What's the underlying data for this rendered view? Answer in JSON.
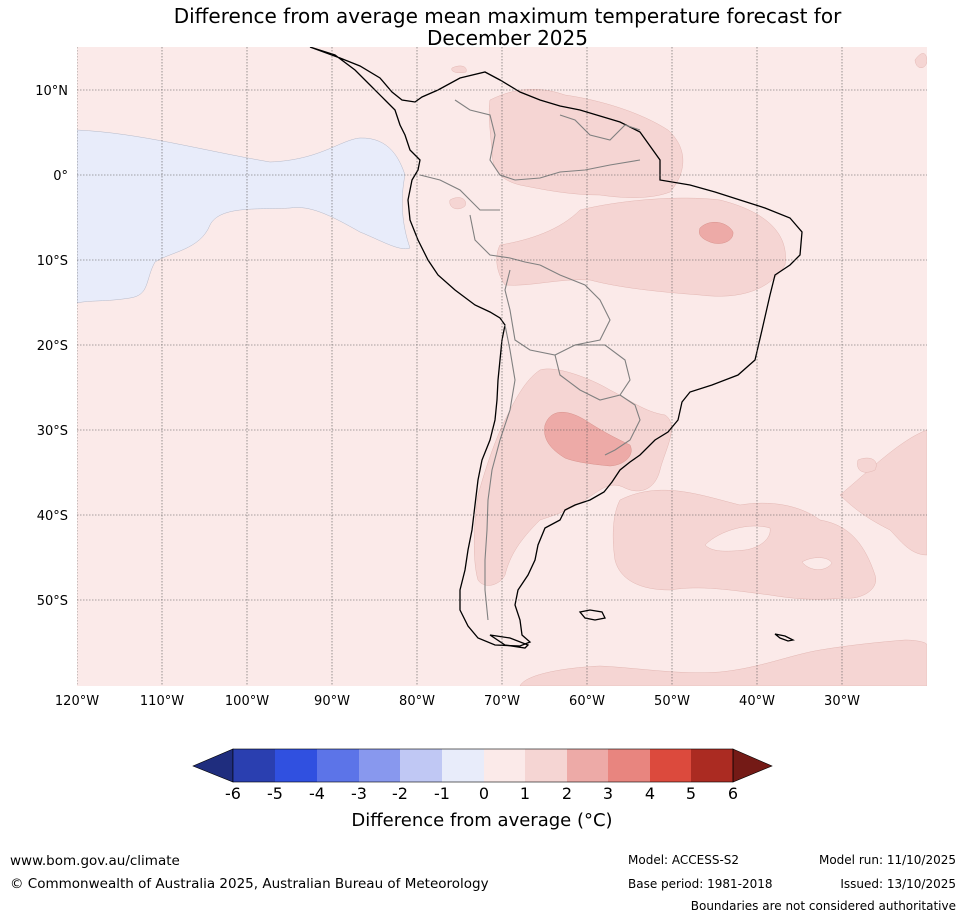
{
  "title": {
    "line1": "Difference from average mean maximum temperature forecast for",
    "line2": "December 2025"
  },
  "map": {
    "lat_labels": [
      "10°N",
      "0°",
      "10°S",
      "20°S",
      "30°S",
      "40°S",
      "50°S"
    ],
    "lon_labels": [
      "120°W",
      "110°W",
      "100°W",
      "90°W",
      "80°W",
      "70°W",
      "60°W",
      "50°W",
      "40°W",
      "30°W"
    ]
  },
  "colorbar": {
    "label": "Difference from average (°C)",
    "ticks": [
      "-6",
      "-5",
      "-4",
      "-3",
      "-2",
      "-1",
      "0",
      "1",
      "2",
      "3",
      "4",
      "5",
      "6"
    ],
    "colors": [
      "#1f2d7e",
      "#2a3fb0",
      "#3050e0",
      "#5c74e8",
      "#8898ee",
      "#c0c8f4",
      "#e8ecfa",
      "#fbeae9",
      "#f5d5d3",
      "#edaaa7",
      "#e8857f",
      "#dc4a3d",
      "#ab2b22",
      "#741a16"
    ]
  },
  "footer": {
    "website": "www.bom.gov.au/climate",
    "copyright": "© Commonwealth of Australia 2025, Australian Bureau of Meteorology",
    "model": "Model: ACCESS-S2",
    "base_period": "Base period: 1981-2018",
    "model_run": "Model run: 11/10/2025",
    "issued": "Issued: 13/10/2025",
    "disclaimer": "Boundaries are not considered authoritative"
  }
}
